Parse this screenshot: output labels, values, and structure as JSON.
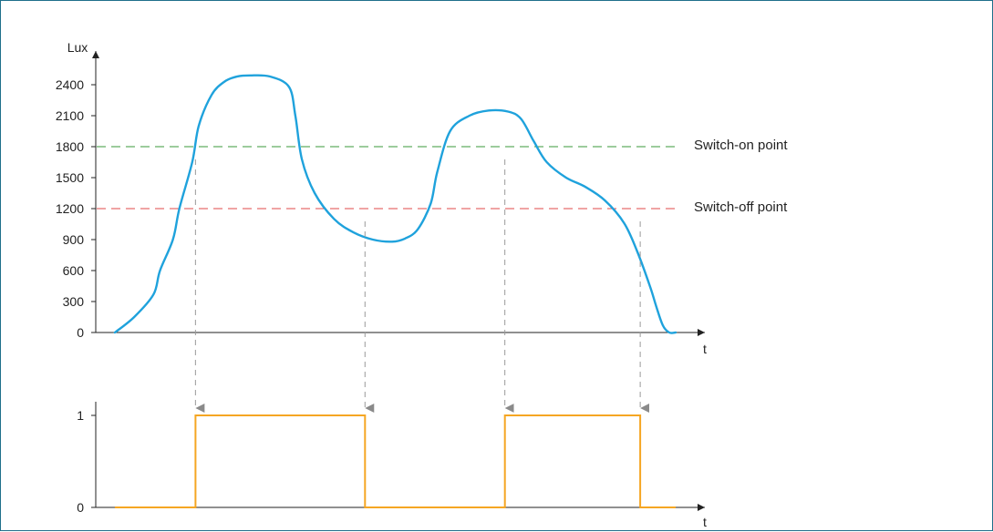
{
  "chart_data": [
    {
      "type": "line",
      "ylabel": "Lux",
      "xlabel": "t",
      "y_ticks": [
        "0",
        "300",
        "600",
        "900",
        "1200",
        "1500",
        "1800",
        "2100",
        "2400"
      ],
      "ylim": [
        0,
        2400
      ],
      "grid": false,
      "colors": {
        "curve": "#1fa2dc",
        "switch_on": "#3a9a3a",
        "switch_off": "#e04848"
      },
      "thresholds": [
        {
          "value": 1800,
          "label": "Switch-on point"
        },
        {
          "value": 1200,
          "label": "Switch-off point"
        }
      ],
      "series": [
        {
          "t": [
            0,
            3,
            6,
            7,
            9,
            10,
            12,
            13,
            15,
            17,
            19,
            21,
            24,
            27,
            28,
            29,
            31,
            34,
            37,
            40,
            43,
            45,
            47,
            49,
            50,
            52,
            55,
            58,
            61,
            63,
            65,
            67,
            70,
            73,
            76,
            79,
            81,
            83,
            84,
            85,
            86,
            87
          ],
          "y": [
            0,
            150,
            370,
            600,
            900,
            1200,
            1650,
            2000,
            2300,
            2430,
            2480,
            2490,
            2480,
            2380,
            2100,
            1680,
            1350,
            1100,
            970,
            900,
            880,
            910,
            1000,
            1250,
            1550,
            1950,
            2100,
            2150,
            2140,
            2070,
            1850,
            1650,
            1500,
            1410,
            1280,
            1060,
            790,
            450,
            250,
            70,
            0,
            0
          ]
        }
      ]
    },
    {
      "type": "line",
      "step": true,
      "xlabel": "t",
      "y_ticks": [
        "0",
        "1"
      ],
      "ylim": [
        0,
        1
      ],
      "colors": {
        "signal": "#f5a623",
        "arrow": "#9a9a9a"
      },
      "switch_times": [
        12.5,
        38.8,
        60.5,
        81.5
      ],
      "series": [
        {
          "t": [
            0,
            12.5,
            12.5,
            38.8,
            38.8,
            60.5,
            60.5,
            81.5,
            81.5,
            87
          ],
          "y": [
            0,
            0,
            1,
            1,
            0,
            0,
            1,
            1,
            0,
            0
          ]
        }
      ]
    }
  ]
}
